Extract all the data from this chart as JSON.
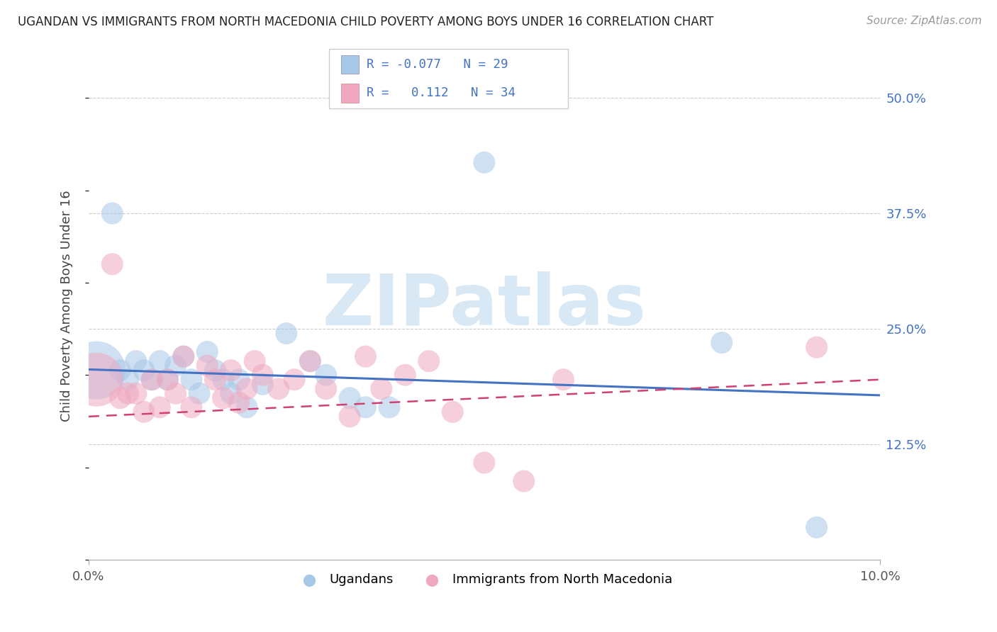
{
  "title": "UGANDAN VS IMMIGRANTS FROM NORTH MACEDONIA CHILD POVERTY AMONG BOYS UNDER 16 CORRELATION CHART",
  "source": "Source: ZipAtlas.com",
  "ylabel": "Child Poverty Among Boys Under 16",
  "xlim": [
    0.0,
    0.1
  ],
  "ylim": [
    0.0,
    0.55
  ],
  "yticks": [
    0.0,
    0.125,
    0.25,
    0.375,
    0.5
  ],
  "ytick_labels": [
    "",
    "12.5%",
    "25.0%",
    "37.5%",
    "50.0%"
  ],
  "xticks": [
    0.0,
    0.1
  ],
  "xtick_labels": [
    "0.0%",
    "10.0%"
  ],
  "ugandan_color": "#A8C8E8",
  "ugandan_line_color": "#4472C4",
  "macedonian_color": "#F0A8C0",
  "macedonian_line_color": "#D04070",
  "right_tick_color": "#4472C4",
  "watermark_color": "#D8E8F0",
  "ugandan_x": [
    0.001,
    0.003,
    0.004,
    0.005,
    0.006,
    0.007,
    0.008,
    0.009,
    0.01,
    0.011,
    0.012,
    0.013,
    0.014,
    0.015,
    0.016,
    0.017,
    0.018,
    0.019,
    0.02,
    0.022,
    0.025,
    0.028,
    0.03,
    0.033,
    0.035,
    0.038,
    0.05,
    0.08,
    0.092
  ],
  "ugandan_y": [
    0.205,
    0.375,
    0.205,
    0.195,
    0.215,
    0.205,
    0.195,
    0.215,
    0.195,
    0.21,
    0.22,
    0.195,
    0.18,
    0.225,
    0.205,
    0.195,
    0.18,
    0.195,
    0.165,
    0.19,
    0.245,
    0.215,
    0.2,
    0.175,
    0.165,
    0.165,
    0.43,
    0.235,
    0.035
  ],
  "ugandan_sizes": [
    3500,
    500,
    500,
    500,
    500,
    500,
    500,
    500,
    500,
    500,
    500,
    500,
    500,
    500,
    500,
    500,
    500,
    500,
    500,
    500,
    500,
    500,
    500,
    500,
    500,
    500,
    500,
    500,
    500
  ],
  "macedonian_x": [
    0.001,
    0.003,
    0.004,
    0.005,
    0.006,
    0.007,
    0.008,
    0.009,
    0.01,
    0.011,
    0.012,
    0.013,
    0.015,
    0.016,
    0.017,
    0.018,
    0.019,
    0.02,
    0.021,
    0.022,
    0.024,
    0.026,
    0.028,
    0.03,
    0.033,
    0.035,
    0.037,
    0.04,
    0.043,
    0.046,
    0.05,
    0.055,
    0.06,
    0.092
  ],
  "macedonian_y": [
    0.195,
    0.32,
    0.175,
    0.18,
    0.18,
    0.16,
    0.195,
    0.165,
    0.195,
    0.18,
    0.22,
    0.165,
    0.21,
    0.195,
    0.175,
    0.205,
    0.17,
    0.185,
    0.215,
    0.2,
    0.185,
    0.195,
    0.215,
    0.185,
    0.155,
    0.22,
    0.185,
    0.2,
    0.215,
    0.16,
    0.105,
    0.085,
    0.195,
    0.23
  ],
  "macedonian_sizes": [
    3000,
    500,
    500,
    500,
    500,
    500,
    500,
    500,
    500,
    500,
    500,
    500,
    500,
    500,
    500,
    500,
    500,
    500,
    500,
    500,
    500,
    500,
    500,
    500,
    500,
    500,
    500,
    500,
    500,
    500,
    500,
    500,
    500,
    500
  ],
  "legend_ugandan": "Ugandans",
  "legend_macedonian": "Immigrants from North Macedonia",
  "legend_r1": "R = -0.077   N = 29",
  "legend_r2": "R =   0.112   N = 34"
}
